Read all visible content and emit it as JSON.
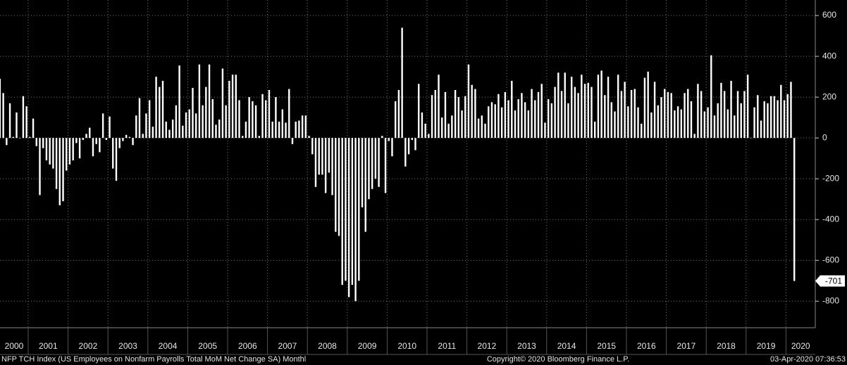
{
  "chart_data": {
    "type": "bar",
    "color": "#ffffff",
    "ylim": [
      -930,
      676
    ],
    "yticks": [
      600,
      400,
      200,
      0,
      -200,
      -400,
      -600,
      -800
    ],
    "grid": true,
    "years": [
      "2000",
      "2001",
      "2002",
      "2003",
      "2004",
      "2005",
      "2006",
      "2007",
      "2008",
      "2009",
      "2010",
      "2011",
      "2012",
      "2013",
      "2014",
      "2015",
      "2016",
      "2017",
      "2018",
      "2019",
      "2020"
    ],
    "values": [
      290,
      220,
      -35,
      170,
      5,
      125,
      0,
      205,
      155,
      5,
      95,
      -40,
      -280,
      -50,
      -110,
      -130,
      -150,
      -250,
      -330,
      -310,
      -160,
      -130,
      -110,
      -25,
      -100,
      -10,
      20,
      50,
      -90,
      -30,
      -70,
      120,
      -10,
      105,
      -150,
      -210,
      -50,
      -15,
      15,
      5,
      -35,
      110,
      195,
      20,
      120,
      185,
      55,
      300,
      250,
      280,
      80,
      40,
      90,
      160,
      355,
      60,
      125,
      140,
      245,
      120,
      360,
      160,
      250,
      360,
      190,
      65,
      90,
      340,
      160,
      280,
      310,
      310,
      185,
      10,
      80,
      200,
      180,
      160,
      10,
      215,
      185,
      235,
      80,
      200,
      80,
      140,
      75,
      240,
      -30,
      80,
      85,
      110,
      110,
      10,
      -80,
      -240,
      -180,
      -180,
      -270,
      -170,
      -280,
      -460,
      -480,
      -720,
      -700,
      -780,
      -720,
      -800,
      -700,
      -340,
      -460,
      -300,
      -250,
      -200,
      -240,
      10,
      -270,
      -15,
      -90,
      180,
      235,
      540,
      -140,
      -80,
      -10,
      -60,
      265,
      125,
      70,
      20,
      210,
      235,
      310,
      100,
      225,
      70,
      110,
      235,
      200,
      135,
      205,
      360,
      260,
      240,
      95,
      110,
      70,
      155,
      175,
      165,
      215,
      150,
      225,
      185,
      280,
      135,
      190,
      220,
      175,
      135,
      240,
      185,
      225,
      265,
      75,
      190,
      170,
      250,
      320,
      230,
      320,
      170,
      300,
      250,
      220,
      310,
      265,
      270,
      250,
      80,
      310,
      330,
      210,
      300,
      175,
      130,
      310,
      230,
      275,
      155,
      235,
      240,
      150,
      70,
      295,
      325,
      125,
      275,
      160,
      200,
      240,
      225,
      220,
      135,
      155,
      140,
      220,
      240,
      180,
      20,
      265,
      230,
      130,
      150,
      405,
      110,
      170,
      270,
      230,
      140,
      280,
      110,
      230,
      170,
      230,
      310,
      1,
      150,
      210,
      85,
      180,
      170,
      205,
      205,
      185,
      260,
      185,
      215,
      275,
      -701
    ],
    "source_note": "NFP TCH Index (US Employees on Nonfarm Payrolls Total MoM Net Change SA)  Monthl",
    "copyright": "Copyright© 2020 Bloomberg Finance L.P.",
    "timestamp": "03-Apr-2020 07:36:53"
  }
}
